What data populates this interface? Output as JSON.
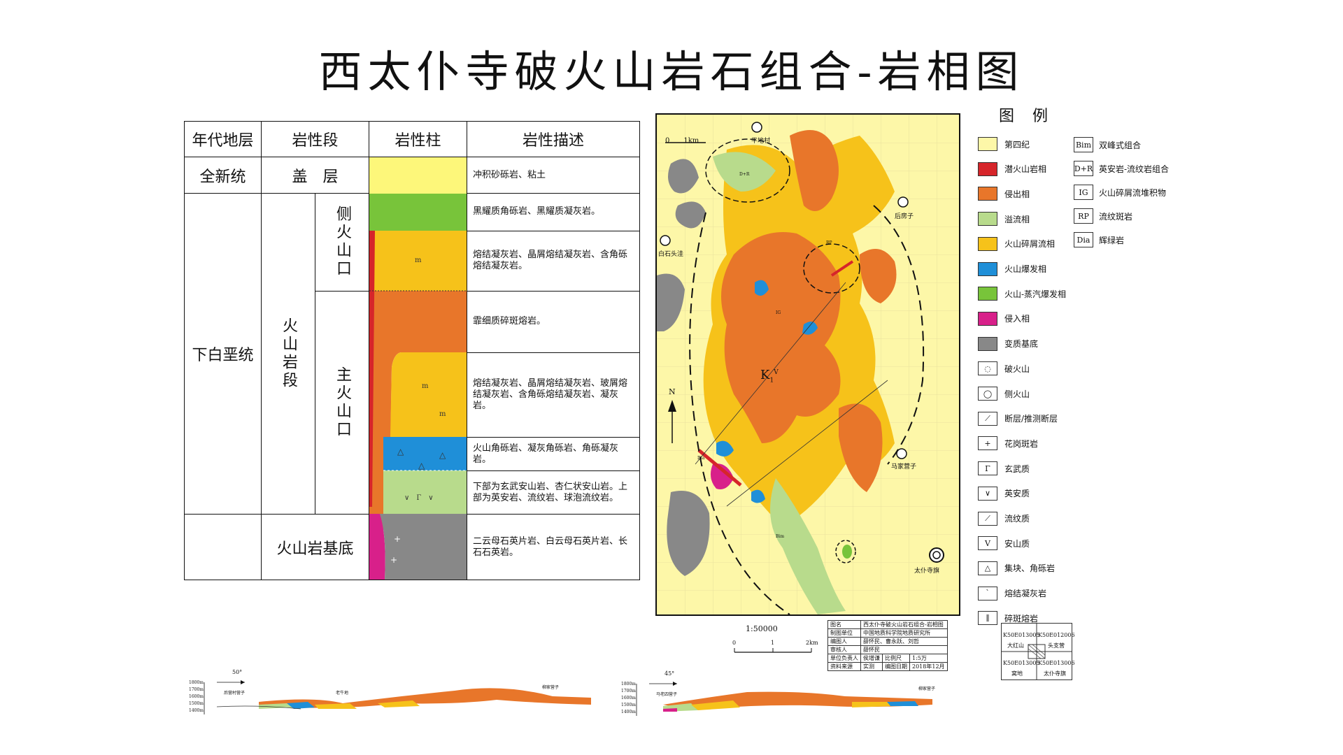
{
  "title": "西太仆寺破火山岩石组合-岩相图",
  "column_table": {
    "headers": [
      "年代地层",
      "岩性段",
      "岩性柱",
      "岩性描述"
    ],
    "eras": {
      "holocene": "全新统",
      "lower_cretaceous": "下白垩统"
    },
    "cover_label": "盖　层",
    "volcanic_member": "火山岩段",
    "side_crater": "侧火山口",
    "main_crater": "主火山口",
    "basement": "火山岩基底",
    "descriptions": [
      "冲积砂砾岩、粘土",
      "黑耀质角砾岩、黑耀质凝灰岩。",
      "熔结凝灰岩、晶屑熔结凝灰岩、含角砾熔结凝灰岩。",
      "霏细质碎斑熔岩。",
      "熔结凝灰岩、晶屑熔结凝灰岩、玻屑熔结凝灰岩、含角砾熔结凝灰岩、凝灰岩。",
      "火山角砾岩、凝灰角砾岩、角砾凝灰岩。",
      "下部为玄武安山岩、杏仁状安山岩。上部为英安岩、流纹岩、球泡流纹岩。",
      "二云母石英片岩、白云母石英片岩、长石石英岩。"
    ]
  },
  "map": {
    "scale_bar": "0　　1km",
    "places": [
      "平地村",
      "后房子",
      "白石头洼",
      "马家营子",
      "太仆寺旗"
    ],
    "unit_label": "K",
    "unit_sub": "1",
    "unit_sup": "V",
    "north": "N",
    "small_labels": [
      "D+R",
      "IG",
      "RP",
      "Bim",
      "Dia"
    ]
  },
  "legend": {
    "title": "图例",
    "items": [
      {
        "label": "第四纪",
        "color": "#fdf7a8"
      },
      {
        "label": "潜火山岩相",
        "color": "#d6252a"
      },
      {
        "label": "侵出相",
        "color": "#e8762a"
      },
      {
        "label": "溢流相",
        "color": "#b8db8c"
      },
      {
        "label": "火山碎屑流相",
        "color": "#f6c21a"
      },
      {
        "label": "火山爆发相",
        "color": "#1f8fd8"
      },
      {
        "label": "火山-蒸汽爆发相",
        "color": "#78c43a"
      },
      {
        "label": "侵入相",
        "color": "#d8208a"
      },
      {
        "label": "变质基底",
        "color": "#888888"
      },
      {
        "label": "破火山",
        "sym": "◌"
      },
      {
        "label": "侧火山",
        "sym": "◯"
      },
      {
        "label": "断层/推测断层",
        "sym": "⟋"
      },
      {
        "label": "花岗斑岩",
        "sym": "+"
      },
      {
        "label": "玄武质",
        "sym": "Γ"
      },
      {
        "label": "英安质",
        "sym": "∨"
      },
      {
        "label": "流纹质",
        "sym": "⟋"
      },
      {
        "label": "安山质",
        "sym": "V"
      },
      {
        "label": "集块、角砾岩",
        "sym": "△"
      },
      {
        "label": "熔结凝灰岩",
        "sym": "ˋ"
      },
      {
        "label": "碎斑熔岩",
        "sym": "∥"
      }
    ],
    "abbrs": [
      {
        "code": "Bim",
        "label": "双峰式组合"
      },
      {
        "code": "D+R",
        "label": "英安岩-流纹岩组合"
      },
      {
        "code": "IG",
        "label": "火山碎屑流堆积物"
      },
      {
        "code": "RP",
        "label": "流纹斑岩"
      },
      {
        "code": "Dia",
        "label": "辉绿岩"
      }
    ]
  },
  "scale": {
    "ratio": "1:50000",
    "ticks": [
      "0",
      "1",
      "2km"
    ]
  },
  "info_table": [
    [
      "图名",
      "西太仆寺破火山岩石组合-岩相图",
      "",
      ""
    ],
    [
      "制图单位",
      "中国地质科学院地质研究所",
      "",
      ""
    ],
    [
      "编图人",
      "薛怀民、曹永跃、刘哲",
      "",
      ""
    ],
    [
      "审核人",
      "薛怀民",
      "",
      ""
    ],
    [
      "单位负责人",
      "侯增谦",
      "比例尺",
      "1:5万"
    ],
    [
      "资料来源",
      "实测",
      "编图日期",
      "2018年12月"
    ]
  ],
  "sheet_index": {
    "cells": [
      "K50E013005",
      "K50E012006",
      "大红山",
      "头支营",
      "K50E013005",
      "K50E013006",
      "窝地",
      "太仆寺旗"
    ]
  },
  "sections": [
    {
      "dir": "50°",
      "ticks": [
        "1800m",
        "1700m",
        "1600m",
        "1500m",
        "1400m"
      ],
      "places": [
        "后营村营子",
        "老牛地",
        "柳家营子"
      ]
    },
    {
      "dir": "45°",
      "ticks": [
        "1800m",
        "1700m",
        "1600m",
        "1500m",
        "1400m"
      ],
      "places": [
        "马老四营子",
        "柳家营子"
      ]
    }
  ]
}
